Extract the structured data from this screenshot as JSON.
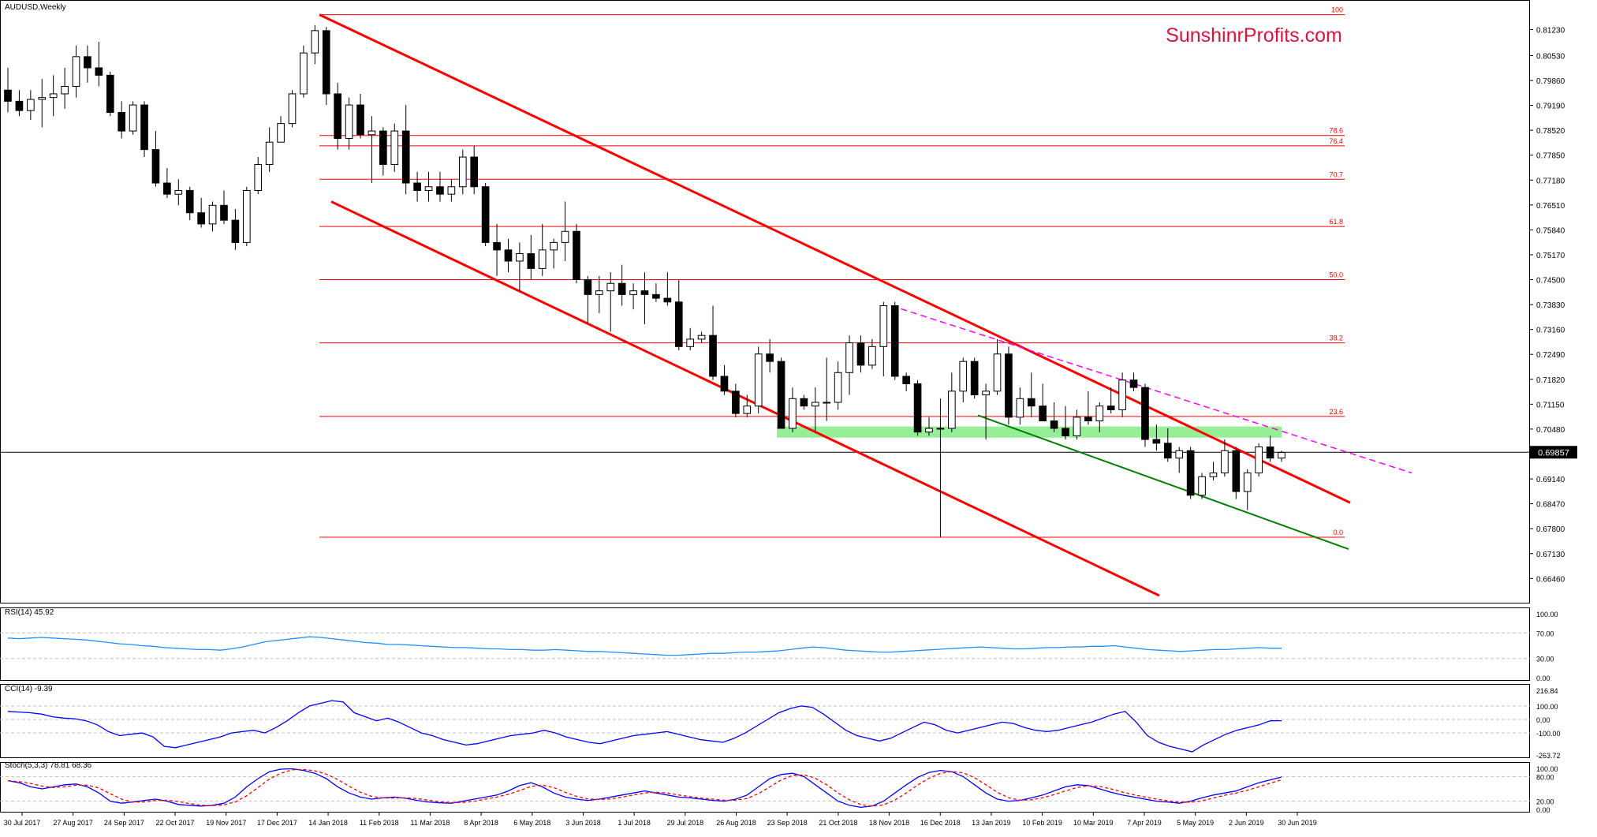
{
  "window": {
    "symbol_title": "AUDUSD,Weekly",
    "watermark": "SunshinrProfits.com",
    "current_price_label": "0.69857"
  },
  "colors": {
    "background": "#ffffff",
    "axis": "#000000",
    "bull_candle": "#ffffff",
    "bear_candle": "#000000",
    "fib_lines": "#ff0000",
    "channel_lines": "#ff0000",
    "support_zone": "#90ee90",
    "support_line_green": "#008000",
    "resistance_dashed": "#ff00ff",
    "watermark": "#dc143c",
    "rsi_line": "#1e90ff",
    "cci_line": "#0000ff",
    "stoch_main": "#0000ff",
    "stoch_signal": "#ff0000"
  },
  "chart_data": [
    {
      "type": "candlestick",
      "title": "AUDUSD,Weekly",
      "x_tick_labels": [
        "30 Jul 2017",
        "27 Aug 2017",
        "24 Sep 2017",
        "22 Oct 2017",
        "19 Nov 2017",
        "17 Dec 2017",
        "14 Jan 2018",
        "11 Feb 2018",
        "11 Mar 2018",
        "8 Apr 2018",
        "6 May 2018",
        "3 Jun 2018",
        "1 Jul 2018",
        "29 Jul 2018",
        "26 Aug 2018",
        "23 Sep 2018",
        "21 Oct 2018",
        "18 Nov 2018",
        "16 Dec 2018",
        "13 Jan 2019",
        "10 Feb 2019",
        "10 Mar 2019",
        "7 Apr 2019",
        "5 May 2019",
        "2 Jun 2019",
        "30 Jun 2019"
      ],
      "y_tick_labels": [
        "0.81230",
        "0.80530",
        "0.79860",
        "0.79190",
        "0.78520",
        "0.77850",
        "0.77180",
        "0.76510",
        "0.75840",
        "0.75170",
        "0.74500",
        "0.73830",
        "0.73160",
        "0.72490",
        "0.71820",
        "0.71150",
        "0.70480",
        "0.69140",
        "0.68470",
        "0.67800",
        "0.67130",
        "0.66460"
      ],
      "ylim": [
        0.66,
        0.816
      ],
      "last_price": 0.69857,
      "fibonacci_levels": [
        {
          "label": "100",
          "value": 0.8163
        },
        {
          "label": "78.6",
          "value": 0.7838
        },
        {
          "label": "76.4",
          "value": 0.781
        },
        {
          "label": "70.7",
          "value": 0.772
        },
        {
          "label": "61.8",
          "value": 0.7593
        },
        {
          "label": "50.0",
          "value": 0.745
        },
        {
          "label": "38.2",
          "value": 0.728
        },
        {
          "label": "23.6",
          "value": 0.7082
        },
        {
          "label": "0.0",
          "value": 0.6757
        }
      ],
      "candles": [
        [
          0.796,
          0.802,
          0.79,
          0.793
        ],
        [
          0.793,
          0.796,
          0.789,
          0.7905
        ],
        [
          0.7905,
          0.796,
          0.788,
          0.7935
        ],
        [
          0.7935,
          0.799,
          0.786,
          0.794
        ],
        [
          0.794,
          0.8,
          0.789,
          0.795
        ],
        [
          0.795,
          0.802,
          0.791,
          0.797
        ],
        [
          0.797,
          0.808,
          0.794,
          0.805
        ],
        [
          0.805,
          0.808,
          0.798,
          0.802
        ],
        [
          0.802,
          0.809,
          0.797,
          0.8
        ],
        [
          0.8,
          0.801,
          0.789,
          0.79
        ],
        [
          0.79,
          0.793,
          0.783,
          0.785
        ],
        [
          0.785,
          0.793,
          0.784,
          0.792
        ],
        [
          0.792,
          0.793,
          0.778,
          0.78
        ],
        [
          0.78,
          0.785,
          0.77,
          0.771
        ],
        [
          0.771,
          0.775,
          0.767,
          0.768
        ],
        [
          0.768,
          0.772,
          0.765,
          0.769
        ],
        [
          0.769,
          0.77,
          0.761,
          0.763
        ],
        [
          0.763,
          0.767,
          0.759,
          0.76
        ],
        [
          0.76,
          0.766,
          0.758,
          0.765
        ],
        [
          0.765,
          0.769,
          0.76,
          0.761
        ],
        [
          0.761,
          0.764,
          0.753,
          0.755
        ],
        [
          0.755,
          0.77,
          0.754,
          0.769
        ],
        [
          0.769,
          0.778,
          0.768,
          0.776
        ],
        [
          0.776,
          0.786,
          0.774,
          0.782
        ],
        [
          0.782,
          0.789,
          0.782,
          0.787
        ],
        [
          0.787,
          0.796,
          0.786,
          0.795
        ],
        [
          0.795,
          0.808,
          0.794,
          0.806
        ],
        [
          0.806,
          0.8135,
          0.803,
          0.812
        ],
        [
          0.812,
          0.813,
          0.792,
          0.795
        ],
        [
          0.795,
          0.798,
          0.78,
          0.783
        ],
        [
          0.783,
          0.794,
          0.78,
          0.792
        ],
        [
          0.792,
          0.795,
          0.783,
          0.784
        ],
        [
          0.784,
          0.789,
          0.771,
          0.785
        ],
        [
          0.785,
          0.786,
          0.773,
          0.776
        ],
        [
          0.776,
          0.787,
          0.774,
          0.785
        ],
        [
          0.785,
          0.792,
          0.768,
          0.771
        ],
        [
          0.771,
          0.774,
          0.766,
          0.769
        ],
        [
          0.769,
          0.774,
          0.766,
          0.77
        ],
        [
          0.77,
          0.774,
          0.766,
          0.768
        ],
        [
          0.768,
          0.772,
          0.766,
          0.77
        ],
        [
          0.77,
          0.78,
          0.768,
          0.778
        ],
        [
          0.778,
          0.781,
          0.768,
          0.77
        ],
        [
          0.77,
          0.771,
          0.754,
          0.755
        ],
        [
          0.755,
          0.76,
          0.746,
          0.753
        ],
        [
          0.753,
          0.756,
          0.747,
          0.75
        ],
        [
          0.75,
          0.755,
          0.742,
          0.752
        ],
        [
          0.752,
          0.757,
          0.745,
          0.748
        ],
        [
          0.748,
          0.76,
          0.746,
          0.753
        ],
        [
          0.753,
          0.756,
          0.748,
          0.755
        ],
        [
          0.755,
          0.766,
          0.75,
          0.758
        ],
        [
          0.758,
          0.76,
          0.744,
          0.745
        ],
        [
          0.745,
          0.746,
          0.733,
          0.741
        ],
        [
          0.741,
          0.746,
          0.736,
          0.742
        ],
        [
          0.742,
          0.747,
          0.731,
          0.744
        ],
        [
          0.744,
          0.749,
          0.738,
          0.741
        ],
        [
          0.741,
          0.744,
          0.737,
          0.742
        ],
        [
          0.742,
          0.747,
          0.733,
          0.741
        ],
        [
          0.741,
          0.744,
          0.739,
          0.74
        ],
        [
          0.74,
          0.747,
          0.738,
          0.739
        ],
        [
          0.739,
          0.745,
          0.726,
          0.727
        ],
        [
          0.727,
          0.732,
          0.726,
          0.729
        ],
        [
          0.729,
          0.731,
          0.728,
          0.73
        ],
        [
          0.73,
          0.738,
          0.718,
          0.719
        ],
        [
          0.719,
          0.722,
          0.714,
          0.715
        ],
        [
          0.715,
          0.717,
          0.708,
          0.709
        ],
        [
          0.709,
          0.714,
          0.708,
          0.711
        ],
        [
          0.711,
          0.727,
          0.709,
          0.725
        ],
        [
          0.725,
          0.729,
          0.72,
          0.723
        ],
        [
          0.723,
          0.724,
          0.706,
          0.705
        ],
        [
          0.705,
          0.716,
          0.704,
          0.713
        ],
        [
          0.713,
          0.714,
          0.71,
          0.711
        ],
        [
          0.711,
          0.716,
          0.704,
          0.712
        ],
        [
          0.712,
          0.724,
          0.707,
          0.712
        ],
        [
          0.712,
          0.723,
          0.71,
          0.72
        ],
        [
          0.72,
          0.73,
          0.714,
          0.728
        ],
        [
          0.728,
          0.73,
          0.72,
          0.722
        ],
        [
          0.722,
          0.729,
          0.721,
          0.727
        ],
        [
          0.727,
          0.739,
          0.719,
          0.738
        ],
        [
          0.738,
          0.739,
          0.718,
          0.719
        ],
        [
          0.719,
          0.72,
          0.715,
          0.717
        ],
        [
          0.717,
          0.718,
          0.703,
          0.704
        ],
        [
          0.704,
          0.708,
          0.703,
          0.705
        ],
        [
          0.705,
          0.713,
          0.6757,
          0.705
        ],
        [
          0.705,
          0.72,
          0.704,
          0.715
        ],
        [
          0.715,
          0.724,
          0.712,
          0.723
        ],
        [
          0.723,
          0.724,
          0.713,
          0.714
        ],
        [
          0.714,
          0.717,
          0.702,
          0.715
        ],
        [
          0.715,
          0.729,
          0.714,
          0.725
        ],
        [
          0.725,
          0.727,
          0.706,
          0.708
        ],
        [
          0.708,
          0.716,
          0.706,
          0.713
        ],
        [
          0.713,
          0.72,
          0.708,
          0.711
        ],
        [
          0.711,
          0.717,
          0.708,
          0.707
        ],
        [
          0.707,
          0.712,
          0.704,
          0.705
        ],
        [
          0.705,
          0.711,
          0.702,
          0.703
        ],
        [
          0.703,
          0.71,
          0.702,
          0.708
        ],
        [
          0.708,
          0.715,
          0.706,
          0.707
        ],
        [
          0.707,
          0.712,
          0.704,
          0.711
        ],
        [
          0.711,
          0.716,
          0.709,
          0.71
        ],
        [
          0.71,
          0.72,
          0.708,
          0.718
        ],
        [
          0.718,
          0.72,
          0.715,
          0.716
        ],
        [
          0.716,
          0.717,
          0.7,
          0.702
        ],
        [
          0.702,
          0.706,
          0.699,
          0.701
        ],
        [
          0.701,
          0.705,
          0.696,
          0.697
        ],
        [
          0.697,
          0.7,
          0.693,
          0.699
        ],
        [
          0.699,
          0.7,
          0.686,
          0.687
        ],
        [
          0.687,
          0.693,
          0.686,
          0.692
        ],
        [
          0.692,
          0.696,
          0.691,
          0.693
        ],
        [
          0.693,
          0.702,
          0.692,
          0.699
        ],
        [
          0.699,
          0.7,
          0.686,
          0.688
        ],
        [
          0.688,
          0.694,
          0.683,
          0.693
        ],
        [
          0.693,
          0.701,
          0.692,
          0.7
        ],
        [
          0.7,
          0.703,
          0.696,
          0.697
        ],
        [
          0.697,
          0.699,
          0.696,
          0.6985
        ]
      ],
      "support_zone": {
        "from": 0.7025,
        "to": 0.7055
      }
    },
    {
      "type": "line",
      "title": "RSI(14) 45.92",
      "y_tick_labels": [
        "100.00",
        "70.00",
        "30.00",
        "0.00"
      ],
      "ylim": [
        0,
        100
      ],
      "values": [
        62,
        61,
        62,
        63,
        62,
        61,
        60,
        59,
        57,
        55,
        53,
        52,
        50,
        49,
        47,
        46,
        45,
        44,
        44,
        43,
        45,
        48,
        52,
        56,
        58,
        60,
        62,
        64,
        63,
        61,
        59,
        57,
        55,
        54,
        52,
        52,
        51,
        50,
        49,
        48,
        47,
        47,
        46,
        45,
        45,
        44,
        44,
        43,
        43,
        44,
        43,
        42,
        41,
        41,
        40,
        39,
        38,
        37,
        36,
        35,
        35,
        36,
        37,
        38,
        38,
        39,
        40,
        40,
        41,
        42,
        44,
        46,
        48,
        47,
        45,
        43,
        42,
        41,
        40,
        40,
        41,
        42,
        43,
        44,
        45,
        46,
        47,
        48,
        47,
        46,
        45,
        45,
        46,
        47,
        47,
        48,
        48,
        49,
        49,
        50,
        48,
        46,
        44,
        43,
        42,
        41,
        42,
        43,
        44,
        44,
        45,
        46,
        47,
        46,
        46
      ]
    },
    {
      "type": "line",
      "title": "CCI(14) -9.39",
      "y_tick_labels": [
        "216.84",
        "100.00",
        "0.00",
        "-100.00",
        "-263.72"
      ],
      "ylim": [
        -263.72,
        216.84
      ],
      "values": [
        60,
        55,
        50,
        40,
        20,
        10,
        5,
        -10,
        -40,
        -90,
        -120,
        -110,
        -100,
        -130,
        -200,
        -210,
        -190,
        -170,
        -150,
        -130,
        -100,
        -90,
        -80,
        -100,
        -60,
        -10,
        50,
        100,
        120,
        140,
        130,
        50,
        20,
        -10,
        10,
        -20,
        -60,
        -100,
        -120,
        -150,
        -170,
        -190,
        -180,
        -160,
        -140,
        -120,
        -110,
        -100,
        -80,
        -100,
        -130,
        -150,
        -170,
        -180,
        -160,
        -140,
        -120,
        -110,
        -100,
        -90,
        -110,
        -130,
        -150,
        -160,
        -170,
        -140,
        -100,
        -50,
        0,
        50,
        80,
        100,
        90,
        40,
        -20,
        -80,
        -120,
        -140,
        -160,
        -140,
        -100,
        -60,
        -20,
        -40,
        -80,
        -100,
        -80,
        -60,
        -40,
        -20,
        -30,
        -60,
        -80,
        -90,
        -80,
        -60,
        -40,
        -20,
        10,
        40,
        60,
        -20,
        -120,
        -170,
        -200,
        -220,
        -240,
        -190,
        -150,
        -110,
        -80,
        -60,
        -40,
        -10,
        -9.39
      ]
    },
    {
      "type": "line",
      "title": "Stoch(5,3,3) 78.81 68.36",
      "y_tick_labels": [
        "100.00",
        "80.00",
        "20.00",
        "0.00"
      ],
      "ylim": [
        0,
        100
      ],
      "series": [
        {
          "values": [
            70,
            65,
            55,
            50,
            55,
            60,
            62,
            55,
            40,
            20,
            15,
            18,
            22,
            25,
            20,
            12,
            10,
            8,
            10,
            15,
            30,
            55,
            75,
            92,
            98,
            99,
            95,
            88,
            75,
            55,
            40,
            30,
            25,
            28,
            30,
            27,
            22,
            18,
            16,
            15,
            20,
            25,
            30,
            35,
            45,
            58,
            65,
            55,
            40,
            30,
            25,
            22,
            25,
            30,
            35,
            40,
            45,
            40,
            35,
            30,
            28,
            25,
            22,
            20,
            25,
            35,
            55,
            75,
            85,
            88,
            80,
            60,
            40,
            20,
            10,
            5,
            8,
            20,
            40,
            60,
            78,
            90,
            95,
            92,
            80,
            60,
            40,
            25,
            20,
            22,
            28,
            35,
            45,
            55,
            60,
            58,
            50,
            42,
            35,
            30,
            25,
            20,
            18,
            15,
            20,
            28,
            35,
            40,
            45,
            55,
            65,
            72,
            78.81
          ]
        }
      ]
    }
  ]
}
